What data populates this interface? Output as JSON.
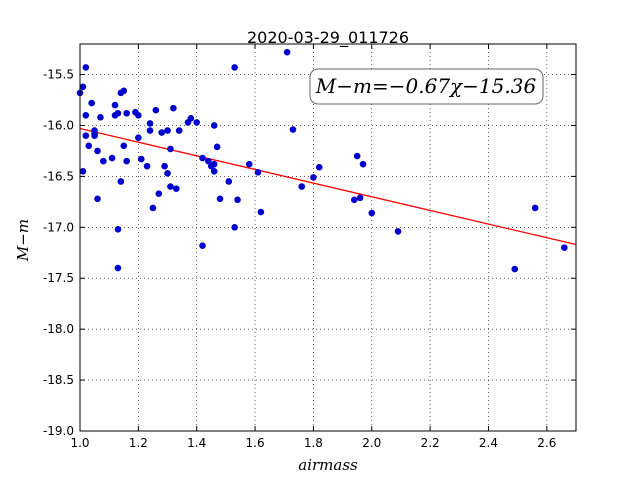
{
  "chart_data": {
    "type": "scatter",
    "title": "2020-03-29_011726",
    "xlabel": "airmass",
    "ylabel": "M−m",
    "xlim": [
      1.0,
      2.7
    ],
    "ylim": [
      -19.0,
      -15.2
    ],
    "xticks": [
      "1.0",
      "1.2",
      "1.4",
      "1.6",
      "1.8",
      "2.0",
      "2.2",
      "2.4",
      "2.6"
    ],
    "yticks": [
      "-15.5",
      "-16.0",
      "-16.5",
      "-17.0",
      "-17.5",
      "-18.0",
      "-18.5",
      "-19.0"
    ],
    "grid": true,
    "annotation": "M−m=−0.67χ−15.36",
    "colors": {
      "points": "#0000cc",
      "fit_line": "#ff0000"
    },
    "fit": {
      "slope": -0.67,
      "intercept": -15.36
    },
    "points": [
      [
        1.0,
        -15.68
      ],
      [
        1.01,
        -15.62
      ],
      [
        1.01,
        -16.45
      ],
      [
        1.02,
        -15.43
      ],
      [
        1.02,
        -15.9
      ],
      [
        1.02,
        -16.1
      ],
      [
        1.03,
        -16.2
      ],
      [
        1.04,
        -15.78
      ],
      [
        1.05,
        -16.05
      ],
      [
        1.05,
        -16.08
      ],
      [
        1.05,
        -16.1
      ],
      [
        1.06,
        -16.25
      ],
      [
        1.06,
        -16.72
      ],
      [
        1.07,
        -15.92
      ],
      [
        1.08,
        -16.35
      ],
      [
        1.11,
        -16.32
      ],
      [
        1.12,
        -15.8
      ],
      [
        1.12,
        -15.9
      ],
      [
        1.13,
        -17.02
      ],
      [
        1.13,
        -17.4
      ],
      [
        1.13,
        -15.88
      ],
      [
        1.14,
        -15.68
      ],
      [
        1.14,
        -16.55
      ],
      [
        1.15,
        -15.66
      ],
      [
        1.15,
        -16.2
      ],
      [
        1.16,
        -15.88
      ],
      [
        1.16,
        -16.35
      ],
      [
        1.19,
        -15.87
      ],
      [
        1.2,
        -15.9
      ],
      [
        1.2,
        -16.12
      ],
      [
        1.21,
        -16.33
      ],
      [
        1.23,
        -16.4
      ],
      [
        1.24,
        -15.98
      ],
      [
        1.24,
        -16.05
      ],
      [
        1.25,
        -16.81
      ],
      [
        1.26,
        -15.85
      ],
      [
        1.27,
        -16.67
      ],
      [
        1.28,
        -16.07
      ],
      [
        1.29,
        -16.4
      ],
      [
        1.3,
        -16.05
      ],
      [
        1.3,
        -16.47
      ],
      [
        1.31,
        -16.23
      ],
      [
        1.31,
        -16.6
      ],
      [
        1.32,
        -15.83
      ],
      [
        1.33,
        -16.62
      ],
      [
        1.34,
        -16.05
      ],
      [
        1.37,
        -15.97
      ],
      [
        1.38,
        -15.93
      ],
      [
        1.4,
        -15.97
      ],
      [
        1.42,
        -17.18
      ],
      [
        1.42,
        -16.32
      ],
      [
        1.44,
        -16.35
      ],
      [
        1.45,
        -16.4
      ],
      [
        1.46,
        -16.45
      ],
      [
        1.46,
        -16.0
      ],
      [
        1.46,
        -16.38
      ],
      [
        1.47,
        -16.21
      ],
      [
        1.48,
        -16.72
      ],
      [
        1.51,
        -16.55
      ],
      [
        1.53,
        -17.0
      ],
      [
        1.53,
        -15.43
      ],
      [
        1.54,
        -16.73
      ],
      [
        1.58,
        -16.38
      ],
      [
        1.61,
        -16.46
      ],
      [
        1.62,
        -16.85
      ],
      [
        1.71,
        -15.28
      ],
      [
        1.73,
        -16.04
      ],
      [
        1.76,
        -16.6
      ],
      [
        1.8,
        -16.51
      ],
      [
        1.82,
        -16.41
      ],
      [
        1.94,
        -16.73
      ],
      [
        1.95,
        -16.3
      ],
      [
        1.96,
        -16.71
      ],
      [
        1.97,
        -16.38
      ],
      [
        2.0,
        -16.86
      ],
      [
        2.09,
        -17.04
      ],
      [
        2.49,
        -17.41
      ],
      [
        2.56,
        -16.81
      ],
      [
        2.66,
        -17.2
      ]
    ]
  }
}
